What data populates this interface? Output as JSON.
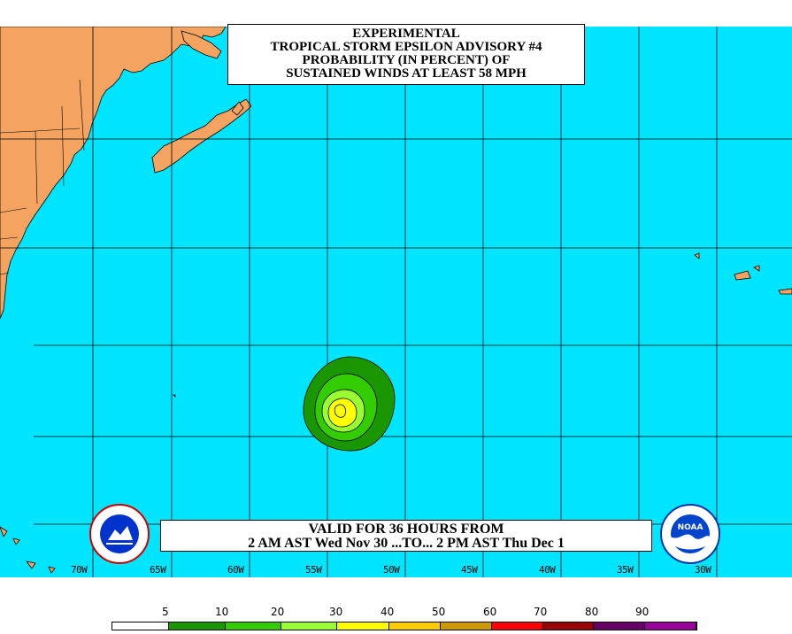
{
  "title": {
    "line1": "EXPERIMENTAL",
    "line2": "TROPICAL STORM EPSILON ADVISORY #4",
    "line3": "PROBABILITY (IN PERCENT) OF",
    "line4": "SUSTAINED WINDS AT LEAST 58 MPH"
  },
  "valid": {
    "line1": "VALID FOR 36 HOURS FROM",
    "line2": "2 AM AST Wed Nov 30 ...TO... 2 PM AST Thu Dec 1"
  },
  "longitudes": [
    "70W",
    "65W",
    "60W",
    "55W",
    "50W",
    "45W",
    "40W",
    "35W",
    "30W"
  ],
  "legend": {
    "values": [
      "5",
      "10",
      "20",
      "30",
      "40",
      "50",
      "60",
      "70",
      "80",
      "90"
    ],
    "colors": [
      "#ffffff",
      "#1a9600",
      "#33cc00",
      "#99ff33",
      "#ffff00",
      "#ffcc00",
      "#cc9900",
      "#ff0000",
      "#990000",
      "#660066",
      "#990099"
    ]
  },
  "colors": {
    "ocean": "#00e5ff",
    "land": "#f4a460",
    "contour_outer": "#1a9600",
    "contour_mid": "#33cc00",
    "contour_inner": "#99ff33",
    "contour_core": "#ffff00"
  },
  "logos": {
    "nws": "NATIONAL WEATHER SERVICE",
    "noaa": "NOAA"
  }
}
